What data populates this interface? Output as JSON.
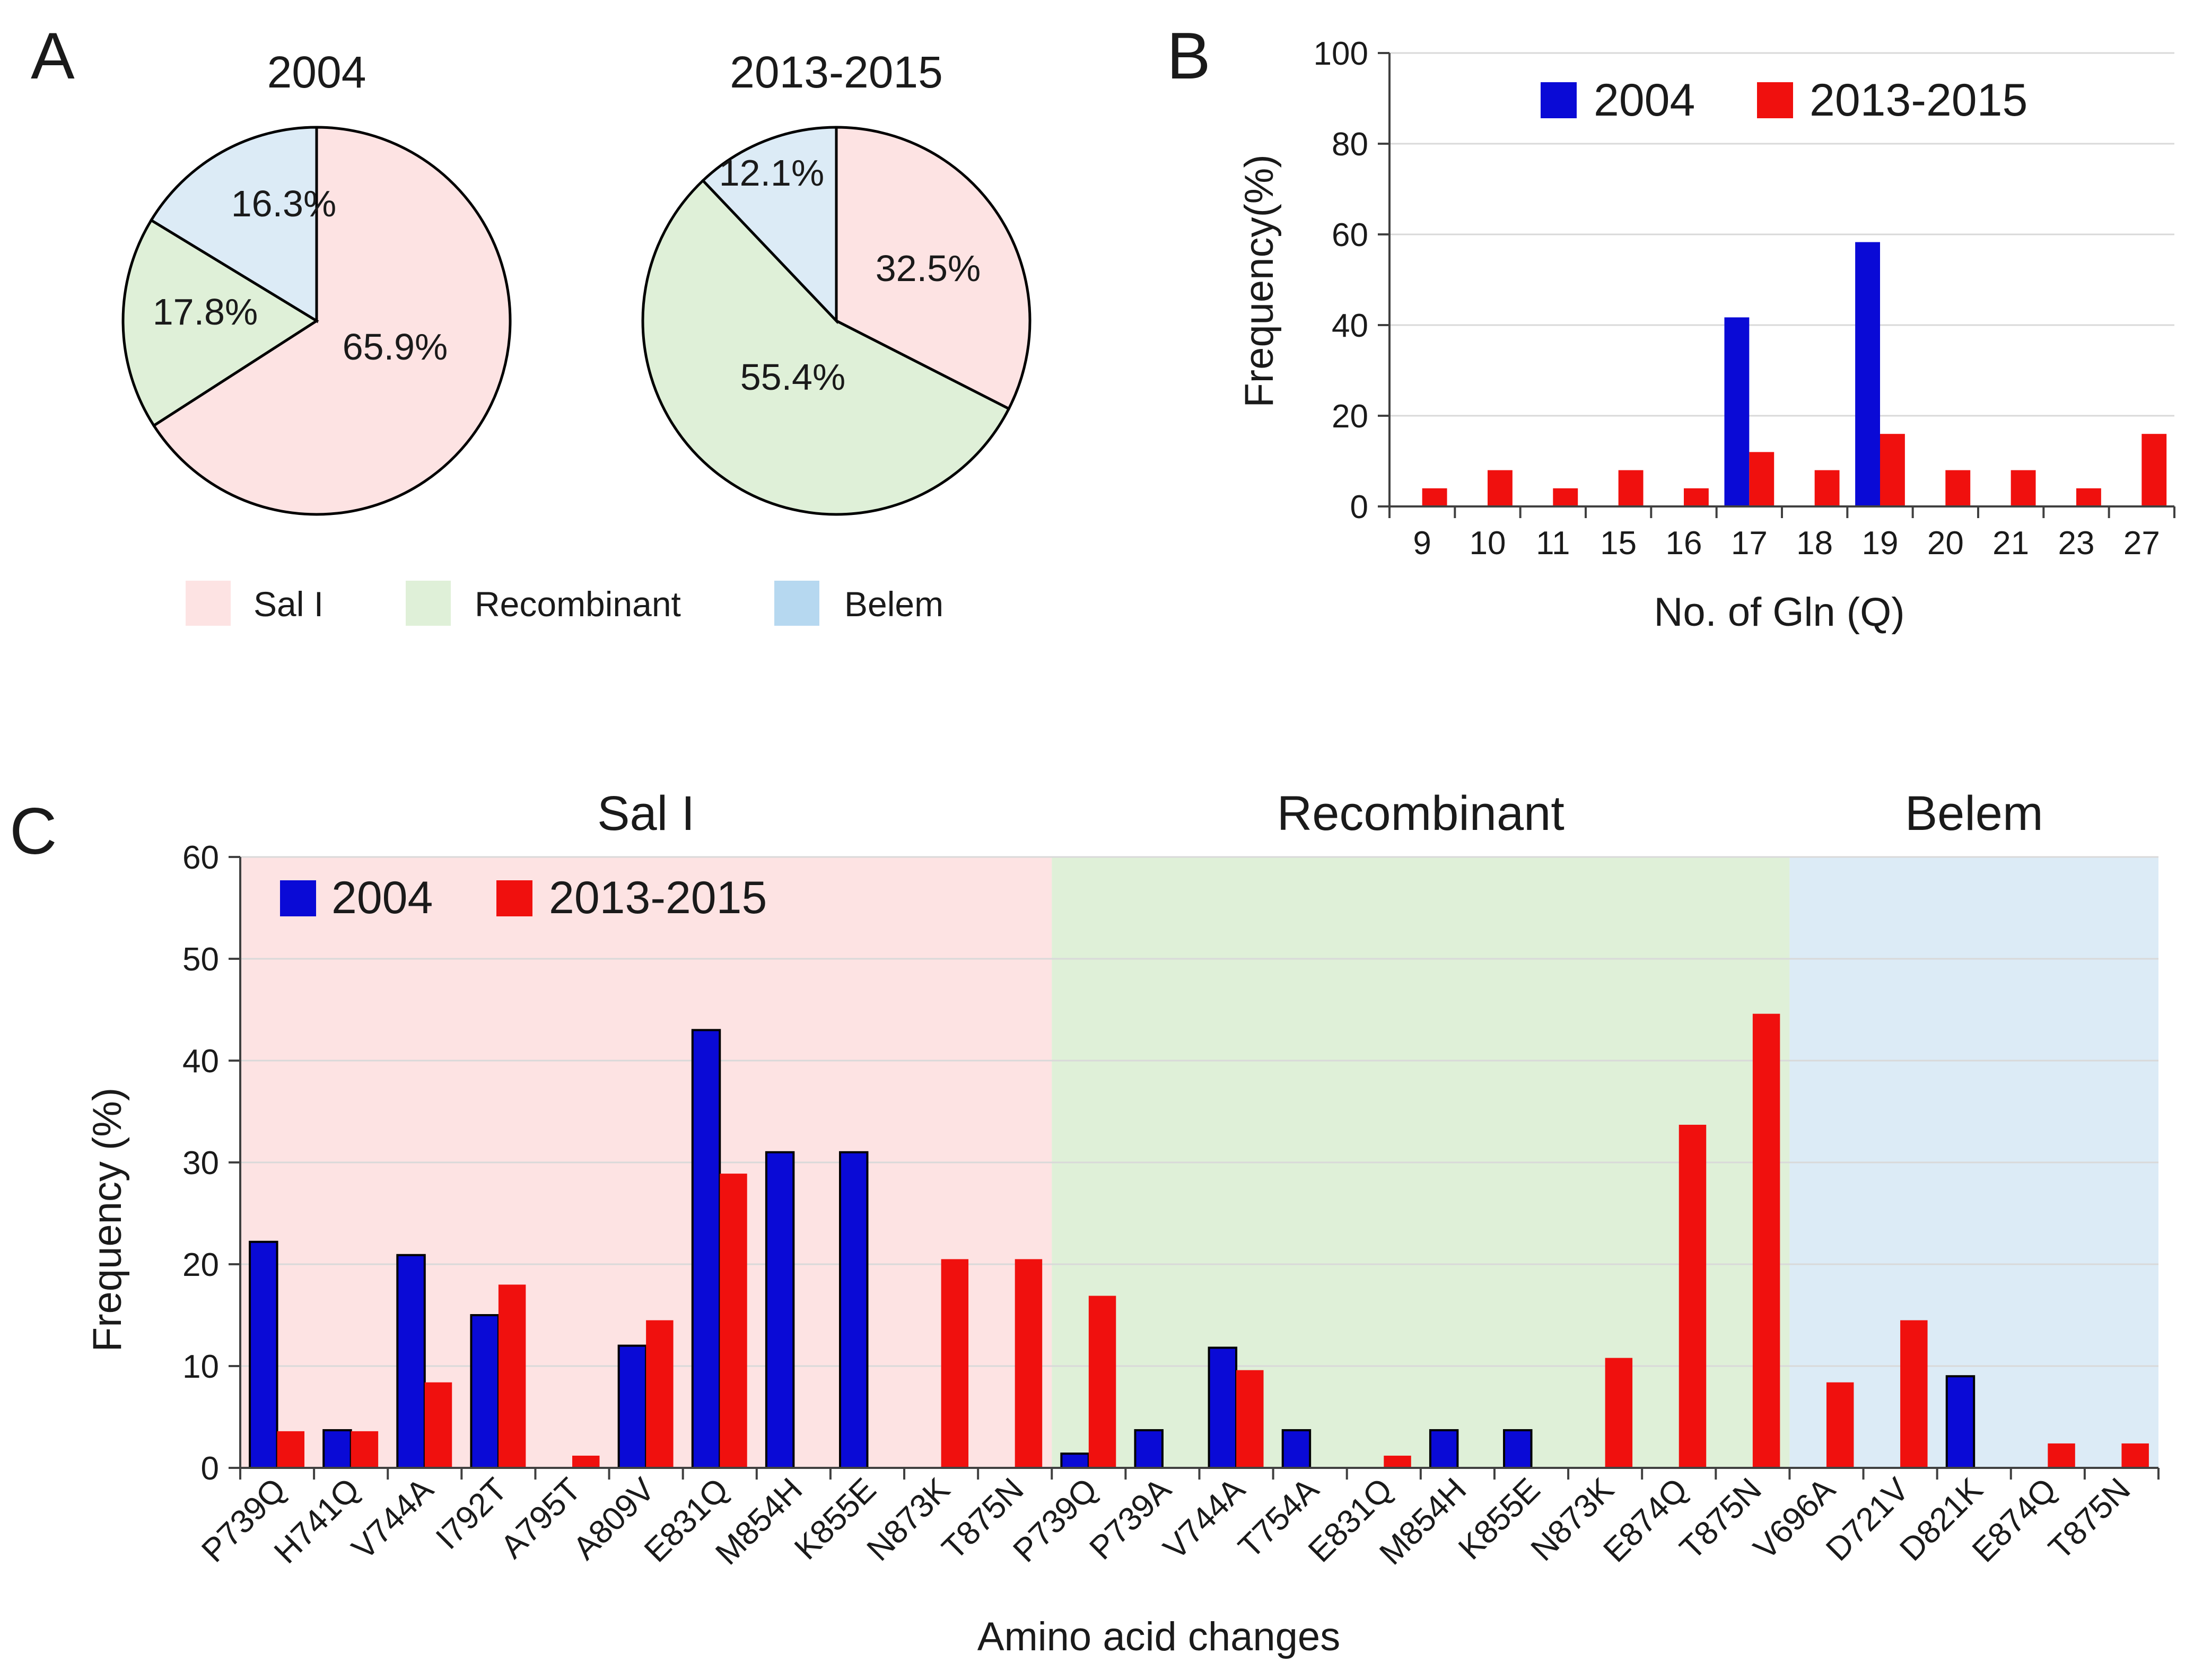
{
  "panels": {
    "a": "A",
    "b": "B",
    "c": "C"
  },
  "colors": {
    "sal": "#fde3e3",
    "recombinant": "#dff0d8",
    "belem": "#dcebf6",
    "legend_belem": "#b6d8f0",
    "blue": "#0a0ad6",
    "red": "#f0100e",
    "axis": "#404040",
    "grid": "#d9d9d9"
  },
  "pie_legend": [
    "Sal I",
    "Recombinant",
    "Belem"
  ],
  "chart_data": [
    {
      "type": "pie",
      "title": "2004",
      "slices": [
        {
          "label": "Sal I",
          "value": 65.9,
          "text": "65.9%"
        },
        {
          "label": "Recombinant",
          "value": 17.8,
          "text": "17.8%"
        },
        {
          "label": "Belem",
          "value": 16.3,
          "text": "16.3%"
        }
      ]
    },
    {
      "type": "pie",
      "title": "2013-2015",
      "slices": [
        {
          "label": "Sal I",
          "value": 32.5,
          "text": "32.5%"
        },
        {
          "label": "Recombinant",
          "value": 55.4,
          "text": "55.4%"
        },
        {
          "label": "Belem",
          "value": 12.1,
          "text": "12.1%"
        }
      ]
    },
    {
      "type": "bar",
      "categories": [
        "9",
        "10",
        "11",
        "15",
        "16",
        "17",
        "18",
        "19",
        "20",
        "21",
        "23",
        "27"
      ],
      "series": [
        {
          "name": "2004",
          "values": [
            0,
            0,
            0,
            0,
            0,
            41.7,
            0,
            58.3,
            0,
            0,
            0,
            0
          ]
        },
        {
          "name": "2013-2015",
          "values": [
            4,
            8,
            4,
            8,
            4,
            12,
            8,
            16,
            8,
            8,
            4,
            16
          ]
        }
      ],
      "xlabel": "No. of Gln (Q)",
      "ylabel": "Frequency(%)",
      "ylim": [
        0,
        100
      ],
      "yticks": [
        0,
        20,
        40,
        60,
        80,
        100
      ],
      "grid": true,
      "legend": "top"
    },
    {
      "type": "bar",
      "groups": [
        {
          "name": "Sal I",
          "start": 0,
          "count": 11
        },
        {
          "name": "Recombinant",
          "start": 11,
          "count": 10
        },
        {
          "name": "Belem",
          "start": 21,
          "count": 5
        }
      ],
      "categories": [
        "P739Q",
        "H741Q",
        "V744A",
        "I792T",
        "A795T",
        "A809V",
        "E831Q",
        "M854H",
        "K855E",
        "N873K",
        "T875N",
        "P739Q",
        "P739A",
        "V744A",
        "T754A",
        "E831Q",
        "M854H",
        "K855E",
        "N873K",
        "E874Q",
        "T875N",
        "V696A",
        "D721V",
        "D821K",
        "E874Q",
        "T875N"
      ],
      "series": [
        {
          "name": "2004",
          "values": [
            22.2,
            3.7,
            20.9,
            15,
            0,
            12,
            43,
            31,
            31,
            0,
            0,
            1.4,
            3.7,
            11.8,
            3.7,
            0,
            3.7,
            3.7,
            0,
            0,
            0,
            0,
            0,
            9,
            0,
            0
          ]
        },
        {
          "name": "2013-2015",
          "values": [
            3.6,
            3.6,
            8.4,
            18,
            1.2,
            14.5,
            28.9,
            0,
            0,
            20.5,
            20.5,
            16.9,
            0,
            9.6,
            0,
            1.2,
            0,
            0,
            10.8,
            33.7,
            44.6,
            8.4,
            14.5,
            0,
            2.4,
            2.4
          ]
        }
      ],
      "xlabel": "Amino acid changes",
      "ylabel": "Frequency (%)",
      "ylim": [
        0,
        60
      ],
      "yticks": [
        0,
        10,
        20,
        30,
        40,
        50,
        60
      ],
      "grid": true,
      "legend": "top-left"
    }
  ]
}
